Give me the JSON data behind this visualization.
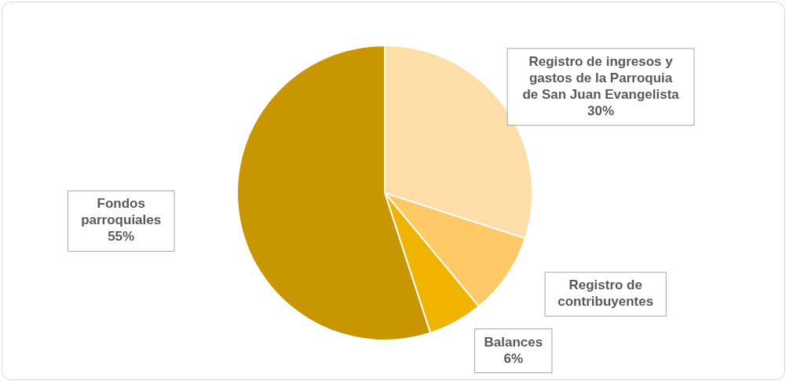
{
  "chart_data": {
    "type": "pie",
    "categories": [
      "Registro de ingresos y gastos de la Parroquia de San Juan Evangelista",
      "Registro de contribuyentes",
      "Balances",
      "Fondos parroquiales"
    ],
    "values": [
      30,
      9,
      6,
      55
    ],
    "colors": [
      "#fddda8",
      "#ffc966",
      "#f0b400",
      "#c89600"
    ],
    "value_labels": [
      "30%",
      null,
      "6%",
      "55%"
    ]
  }
}
